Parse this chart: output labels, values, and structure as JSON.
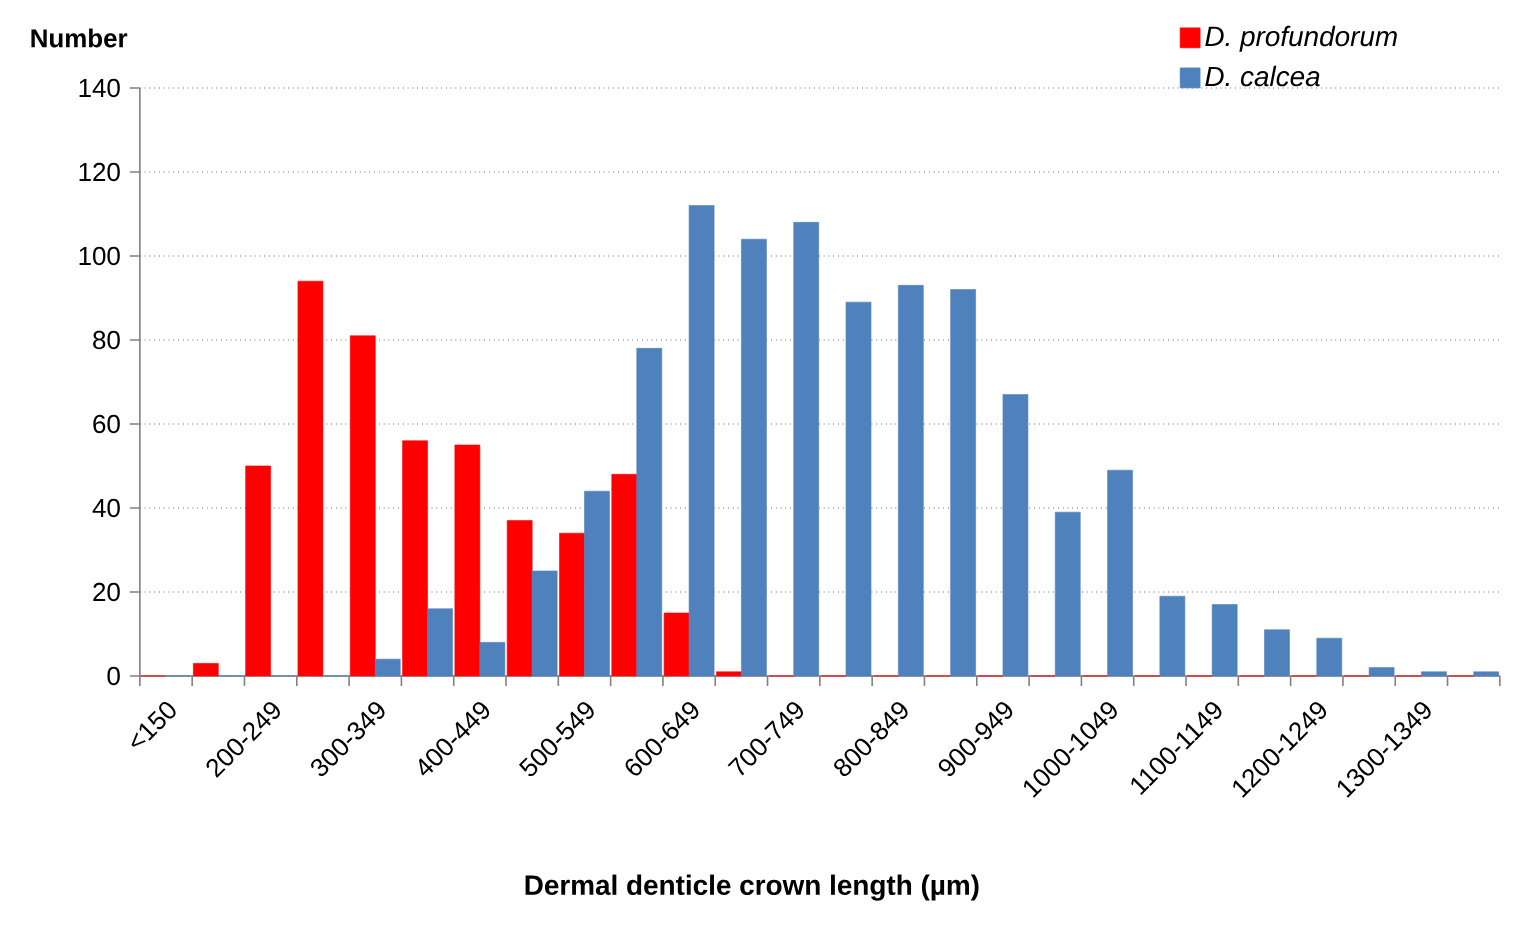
{
  "chart_data": {
    "type": "bar",
    "xlabel": "Dermal denticle crown length (µm)",
    "ylabel": "Number",
    "categories": [
      "<150",
      null,
      "200-249",
      null,
      "300-349",
      null,
      "400-449",
      null,
      "500-549",
      null,
      "600-649",
      null,
      "700-749",
      null,
      "800-849",
      null,
      "900-949",
      null,
      "1000-1049",
      null,
      "1100-1149",
      null,
      "1200-1249",
      null,
      "1300-1349",
      null
    ],
    "series": [
      {
        "name": "D. profundorum",
        "color": "#ff0000",
        "values": [
          0,
          3,
          50,
          94,
          81,
          56,
          55,
          37,
          34,
          48,
          15,
          1,
          0,
          0,
          0,
          0,
          0,
          0,
          0,
          0,
          0,
          0,
          0,
          0,
          0,
          0
        ]
      },
      {
        "name": "D. calcea",
        "color": "#4f81bd",
        "values": [
          0,
          0,
          0,
          0,
          4,
          16,
          8,
          25,
          44,
          78,
          112,
          104,
          108,
          89,
          93,
          92,
          67,
          39,
          49,
          19,
          17,
          11,
          9,
          2,
          1,
          1
        ]
      }
    ],
    "ylim": [
      0,
      140
    ],
    "yticks": [
      0,
      20,
      40,
      60,
      80,
      100,
      120,
      140
    ],
    "grid": "y",
    "legend": "top right"
  }
}
